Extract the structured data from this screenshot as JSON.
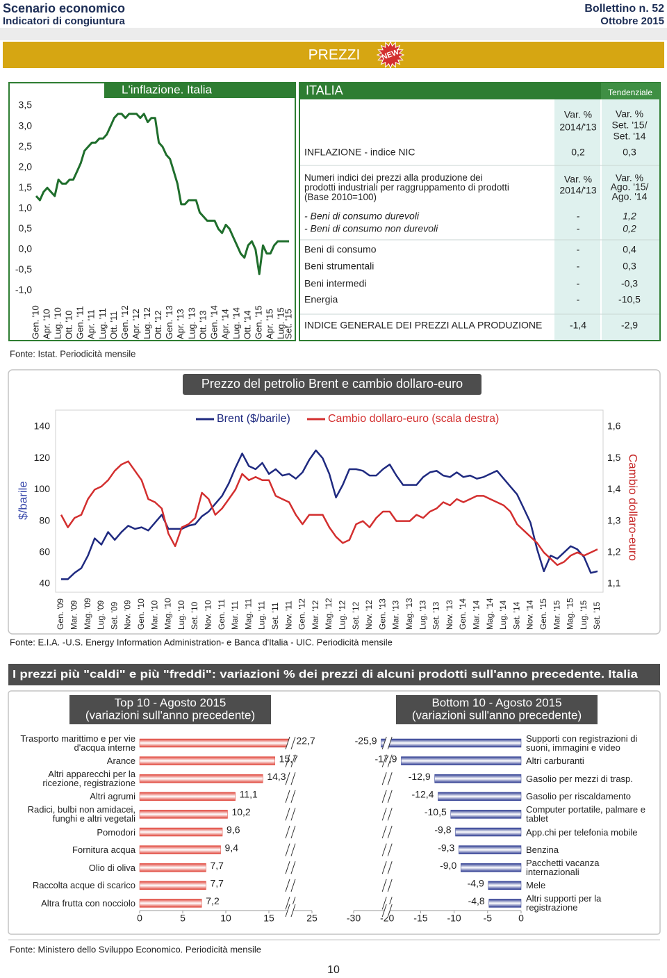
{
  "header": {
    "title": "Scenario economico",
    "subtitle": "Indicatori di congiuntura",
    "issue": "Bollettino n. 52",
    "date": "Ottobre 2015"
  },
  "section": {
    "title": "PREZZI",
    "badge": "NEW"
  },
  "table": {
    "title": "ITALIA",
    "group_header": "Tendenziale",
    "col_headers": [
      [
        "Var. %",
        "2014/'13"
      ],
      [
        "Var. %",
        "Set. '15/",
        "Set. '14"
      ]
    ],
    "rows": [
      {
        "label": "INFLAZIONE - indice NIC",
        "cells": [
          "0,2",
          "0,3"
        ]
      }
    ],
    "ppi": {
      "label": "Numeri indici dei prezzi alla produzione dei prodotti industriali per raggruppamento di prodotti (Base 2010=100)",
      "col_headers": [
        [
          "Var. %",
          "2014/'13"
        ],
        [
          "Var. %",
          "Ago. '15/",
          "Ago. '14"
        ]
      ],
      "rows": [
        {
          "label": "- Beni di consumo durevoli",
          "cells": [
            "-",
            "1,2"
          ]
        },
        {
          "label": "- Beni di consumo non durevoli",
          "cells": [
            "-",
            "0,2"
          ]
        },
        {
          "label": "Beni di consumo",
          "cells": [
            "-",
            "0,4"
          ]
        },
        {
          "label": "Beni strumentali",
          "cells": [
            "-",
            "0,3"
          ]
        },
        {
          "label": "Beni intermedi",
          "cells": [
            "-",
            "-0,3"
          ]
        },
        {
          "label": "Energia",
          "cells": [
            "-",
            "-10,5"
          ]
        },
        {
          "label": "INDICE GENERALE DEI PREZZI ALLA PRODUZIONE",
          "cells": [
            "-1,4",
            "-2,9"
          ]
        }
      ]
    }
  },
  "section3": {
    "title": "I prezzi più \"caldi\" e più \"freddi\": variazioni % dei prezzi di alcuni prodotti sull'anno precedente. Italia"
  },
  "sources": [
    "Fonte: Istat. Periodicità mensile",
    "Fonte: E.I.A. -U.S. Energy Information Administration- e Banca d'Italia - UIC. Periodicità mensile",
    "Fonte: Ministero dello Sviluppo Economico. Periodicità mensile"
  ],
  "page_number": "10",
  "chart_data": [
    {
      "type": "line",
      "title": "L'inflazione. Italia",
      "color": "#1f6e2c",
      "categories": [
        "Gen. '10",
        null,
        null,
        "Apr. '10",
        null,
        null,
        "Lug. '10",
        null,
        null,
        "Ott. '10",
        null,
        null,
        "Gen. '11",
        null,
        null,
        "Apr. '11",
        null,
        null,
        "Lug. '11",
        null,
        null,
        "Ott. '11",
        null,
        null,
        "Gen. '12",
        null,
        null,
        "Apr. '12",
        null,
        null,
        "Lug. '12",
        null,
        null,
        "Ott. '12",
        null,
        null,
        "Gen. '13",
        null,
        null,
        "Apr. '13",
        null,
        null,
        "Lug. '13",
        null,
        null,
        "Ott. '13",
        null,
        null,
        "Gen. '14",
        null,
        null,
        "Apr. '14",
        null,
        null,
        "Lug. '14",
        null,
        null,
        "Ott. '14",
        null,
        null,
        "Gen. '15",
        null,
        null,
        "Apr. '15",
        null,
        null,
        "Lug. '15",
        null,
        "Set. '15"
      ],
      "values": [
        1.3,
        1.2,
        1.4,
        1.5,
        1.4,
        1.3,
        1.7,
        1.6,
        1.6,
        1.7,
        1.7,
        1.9,
        2.1,
        2.4,
        2.5,
        2.6,
        2.6,
        2.7,
        2.7,
        2.8,
        3.0,
        3.2,
        3.3,
        3.3,
        3.2,
        3.3,
        3.3,
        3.3,
        3.2,
        3.3,
        3.1,
        3.2,
        3.2,
        2.6,
        2.5,
        2.3,
        2.2,
        1.9,
        1.6,
        1.1,
        1.1,
        1.2,
        1.2,
        1.2,
        0.9,
        0.8,
        0.7,
        0.7,
        0.7,
        0.5,
        0.4,
        0.6,
        0.5,
        0.3,
        0.1,
        -0.1,
        -0.2,
        0.1,
        0.2,
        0.0,
        -0.6,
        0.1,
        -0.1,
        -0.1,
        0.1,
        0.2,
        0.2,
        0.2,
        0.2
      ],
      "ylim": [
        -1.0,
        3.5
      ],
      "yticks": [
        {
          "value": -1.0,
          "label": "-1,0"
        },
        {
          "value": -0.5,
          "label": "-0,5"
        },
        {
          "value": 0,
          "label": "0,0"
        },
        {
          "value": 0.5,
          "label": "0,5"
        },
        {
          "value": 1.0,
          "label": "1,0"
        },
        {
          "value": 1.5,
          "label": "1,5"
        },
        {
          "value": 2.0,
          "label": "2,0"
        },
        {
          "value": 2.5,
          "label": "2,5"
        },
        {
          "value": 3.0,
          "label": "3,0"
        },
        {
          "value": 3.5,
          "label": "3,5"
        }
      ]
    },
    {
      "type": "line",
      "title": "Prezzo del petrolio Brent e cambio dollaro-euro",
      "ylabel": "$/barile",
      "y2label": "Cambio dollaro-euro",
      "categories": [
        "Gen. '09",
        null,
        "Mar. '09",
        null,
        "Mag. '09",
        null,
        "Lug. '09",
        null,
        "Set. '09",
        null,
        "Nov. '09",
        null,
        "Gen. '10",
        null,
        "Mar. '10",
        null,
        "Mag. '10",
        null,
        "Lug. '10",
        null,
        "Set. '10",
        null,
        "Nov. '10",
        null,
        "Gen. '11",
        null,
        "Mar. '11",
        null,
        "Mag. '11",
        null,
        "Lug. '11",
        null,
        "Set. '11",
        null,
        "Nov. '11",
        null,
        "Gen. '12",
        null,
        "Mar. '12",
        null,
        "Mag. '12",
        null,
        "Lug. '12",
        null,
        "Set. '12",
        null,
        "Nov. '12",
        null,
        "Gen. '13",
        null,
        "Mar. '13",
        null,
        "Mag. '13",
        null,
        "Lug. '13",
        null,
        "Set. '13",
        null,
        "Nov. '13",
        null,
        "Gen. '14",
        null,
        "Mar. '14",
        null,
        "Mag. '14",
        null,
        "Lug. '14",
        null,
        "Set. '14",
        null,
        "Nov. '14",
        null,
        "Gen. '15",
        null,
        "Mar. '15",
        null,
        "Mag. '15",
        null,
        "Lug. '15",
        null,
        "Set. '15"
      ],
      "series": [
        {
          "name": "Brent ($/barile)",
          "color": "#1f2a80",
          "values": [
            43,
            43,
            47,
            50,
            58,
            69,
            65,
            73,
            68,
            73,
            77,
            75,
            76,
            74,
            79,
            84,
            75,
            75,
            75,
            77,
            78,
            83,
            86,
            91,
            96,
            104,
            114,
            123,
            115,
            113,
            117,
            110,
            113,
            109,
            110,
            107,
            111,
            119,
            125,
            120,
            110,
            95,
            103,
            113,
            113,
            112,
            109,
            109,
            113,
            116,
            109,
            103,
            103,
            103,
            108,
            111,
            112,
            109,
            108,
            111,
            108,
            109,
            107,
            108,
            110,
            112,
            107,
            102,
            97,
            88,
            79,
            62,
            48,
            58,
            56,
            60,
            64,
            62,
            57,
            47,
            48
          ]
        },
        {
          "name": "Cambio dollaro-euro (scala destra)",
          "color": "#d32f2f",
          "axis": "y2",
          "values": [
            1.32,
            1.28,
            1.31,
            1.32,
            1.37,
            1.4,
            1.41,
            1.43,
            1.46,
            1.48,
            1.49,
            1.46,
            1.43,
            1.37,
            1.36,
            1.34,
            1.26,
            1.22,
            1.28,
            1.29,
            1.31,
            1.39,
            1.37,
            1.32,
            1.34,
            1.37,
            1.4,
            1.45,
            1.43,
            1.44,
            1.43,
            1.43,
            1.38,
            1.37,
            1.36,
            1.32,
            1.29,
            1.32,
            1.32,
            1.32,
            1.28,
            1.25,
            1.23,
            1.24,
            1.29,
            1.3,
            1.28,
            1.31,
            1.33,
            1.33,
            1.3,
            1.3,
            1.3,
            1.32,
            1.31,
            1.33,
            1.34,
            1.36,
            1.35,
            1.37,
            1.36,
            1.37,
            1.38,
            1.38,
            1.37,
            1.36,
            1.35,
            1.33,
            1.29,
            1.27,
            1.25,
            1.23,
            1.2,
            1.18,
            1.16,
            1.17,
            1.19,
            1.2,
            1.19,
            1.2,
            1.21
          ]
        }
      ],
      "ylim": [
        40,
        140
      ],
      "yticks": [
        40,
        60,
        80,
        100,
        120,
        140
      ],
      "y2lim": [
        1.1,
        1.6
      ],
      "y2ticks": [
        {
          "value": 1.1,
          "label": "1,1"
        },
        {
          "value": 1.2,
          "label": "1,2"
        },
        {
          "value": 1.3,
          "label": "1,3"
        },
        {
          "value": 1.4,
          "label": "1,4"
        },
        {
          "value": 1.5,
          "label": "1,5"
        },
        {
          "value": 1.6,
          "label": "1,6"
        }
      ]
    },
    {
      "type": "bar",
      "orientation": "horizontal",
      "title": "Top 10 - Agosto 2015",
      "subtitle": "(variazioni sull'anno precedente)",
      "color": "#e0453a",
      "categories": [
        "Trasporto marittimo e per vie d'acqua interne",
        "Arance",
        "Altri apparecchi per la ricezione, registrazione",
        "Altri agrumi",
        "Radici, bulbi non amidacei, funghi e altri vegetali",
        "Pomodori",
        "Fornitura acqua",
        "Olio di oliva",
        "Raccolta acque di scarico",
        "Altra frutta con nocciolo"
      ],
      "values": [
        22.7,
        15.7,
        14.3,
        11.1,
        10.2,
        9.6,
        9.4,
        7.7,
        7.7,
        7.2
      ],
      "value_labels": [
        "22,7",
        "15,7",
        "14,3",
        "11,1",
        "10,2",
        "9,6",
        "9,4",
        "7,7",
        "7,7",
        "7,2"
      ],
      "xlim": [
        0,
        25
      ],
      "xticks": [
        0,
        5,
        10,
        15,
        25
      ],
      "axis_break": [
        17.5,
        22.5
      ]
    },
    {
      "type": "bar",
      "orientation": "horizontal",
      "title": "Bottom 10 - Agosto 2015",
      "subtitle": "(variazioni sull'anno precedente)",
      "color": "#2b3990",
      "categories": [
        "Supporti con registrazioni di suoni, immagini e video",
        "Altri carburanti",
        "Gasolio per mezzi di trasp.",
        "Gasolio per riscaldamento",
        "Computer portatile, palmare e tablet",
        "App.chi per telefonia mobile",
        "Benzina",
        "Pacchetti vacanza internazionali",
        "Mele",
        "Altri supporti per la registrazione"
      ],
      "values": [
        -25.9,
        -17.9,
        -12.9,
        -12.4,
        -10.5,
        -9.8,
        -9.3,
        -9.0,
        -4.9,
        -4.8
      ],
      "value_labels": [
        "-25,9",
        "-17,9",
        "-12,9",
        "-12,4",
        "-10,5",
        "-9,8",
        "-9,3",
        "-9,0",
        "-4,9",
        "-4,8"
      ],
      "xlim": [
        -30,
        0
      ],
      "xticks": [
        -30,
        -20,
        -15,
        -10,
        -5,
        0
      ],
      "axis_break": [
        -25,
        -20
      ]
    }
  ]
}
